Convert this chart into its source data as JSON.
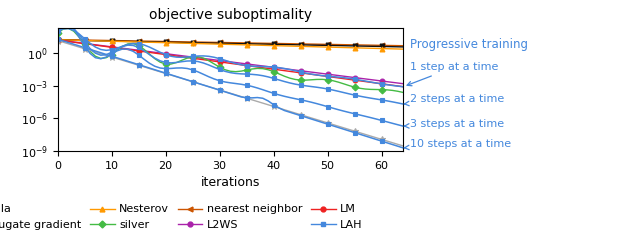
{
  "title": "objective suboptimality",
  "xlabel": "iterations",
  "xlim": [
    0,
    64
  ],
  "ylim": [
    1e-09,
    200
  ],
  "x_ticks": [
    0,
    10,
    20,
    30,
    40,
    50,
    60
  ],
  "ann_color": "#4488dd",
  "progressive_training_label": "Progressive training",
  "ann_labels": [
    "1 step at a time",
    "2 steps at a time",
    "3 steps at a time",
    "10 steps at a time"
  ],
  "colors": {
    "vanilla": "#111111",
    "cg": "#aaaaaa",
    "nesterov": "#ff9900",
    "silver": "#44bb44",
    "nn": "#cc5500",
    "l2ws": "#aa22aa",
    "lm": "#ee2222",
    "lah": "#4488dd"
  },
  "start_val": 15.0,
  "vanilla_end": 3.5,
  "nn_end": 4.5,
  "nesterov_end": 2.2,
  "lm_end": 0.0008,
  "l2ws_end": 0.0015,
  "lah1_end": 0.0008,
  "lah2_end": 2e-05,
  "lah3_end": 2e-07,
  "lah10_end": 2e-09,
  "cg_end": 3e-09,
  "silver_end": 0.0002
}
